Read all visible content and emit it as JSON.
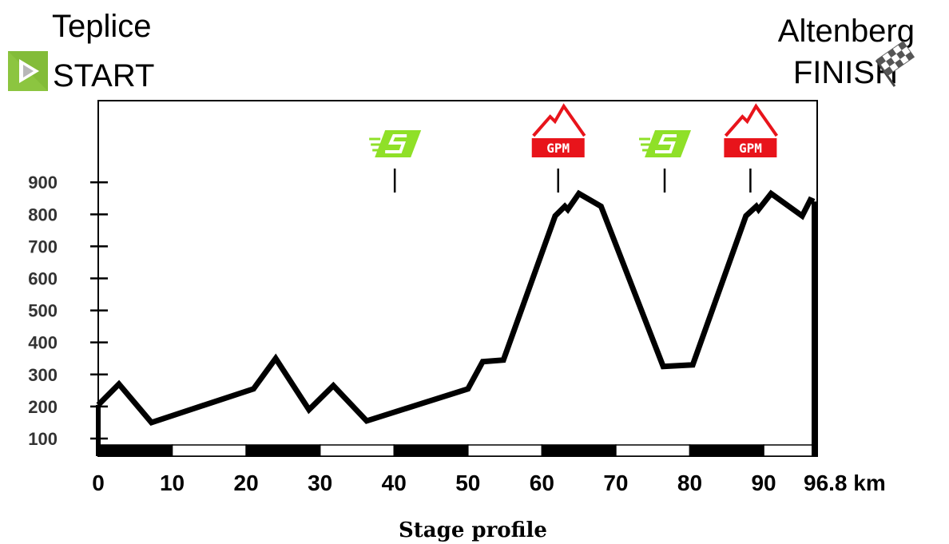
{
  "start": {
    "town": "Teplice",
    "label": "START"
  },
  "finish": {
    "town": "Altenberg",
    "label": "FINISH"
  },
  "caption": "Stage profile",
  "colors": {
    "line": "#000000",
    "sprint": "#8fe028",
    "gpm": "#e8141b",
    "start_icon": "#8cc540"
  },
  "markers": [
    {
      "type": "sprint",
      "km": 40.1,
      "icon": "sprint-icon"
    },
    {
      "type": "gpm",
      "km": 62.2,
      "icon": "gpm-icon",
      "text": "GPM"
    },
    {
      "type": "sprint",
      "km": 76.6,
      "icon": "sprint-icon"
    },
    {
      "type": "gpm",
      "km": 88.2,
      "icon": "gpm-icon",
      "text": "GPM"
    }
  ],
  "chart_data": {
    "type": "line",
    "title": "Stage profile",
    "xlabel": "",
    "ylabel": "",
    "x_unit": "km",
    "xlim": [
      0,
      96.8
    ],
    "ylim": [
      45,
      1155
    ],
    "y_ticks": [
      100,
      200,
      300,
      400,
      500,
      600,
      700,
      800,
      900
    ],
    "x_ticks": [
      "0",
      "10",
      "20",
      "30",
      "40",
      "50",
      "60",
      "70",
      "80",
      "90",
      "96.8 km"
    ],
    "x_tick_values": [
      0,
      10,
      20,
      30,
      40,
      50,
      60,
      70,
      80,
      90,
      96.8
    ],
    "grid": false,
    "series": [
      {
        "x": [
          0,
          2.8,
          7.2,
          21,
          24,
          28.5,
          31.8,
          36.3,
          50,
          52,
          54.8,
          61.8,
          63.1,
          63.5,
          65,
          68,
          76.4,
          80.4,
          87.6,
          89,
          89.3,
          91,
          95.2,
          96.3,
          96.8
        ],
        "y": [
          205,
          270,
          150,
          255,
          350,
          190,
          265,
          155,
          255,
          340,
          345,
          795,
          825,
          815,
          865,
          825,
          325,
          330,
          795,
          825,
          815,
          865,
          795,
          845,
          840
        ]
      }
    ]
  }
}
